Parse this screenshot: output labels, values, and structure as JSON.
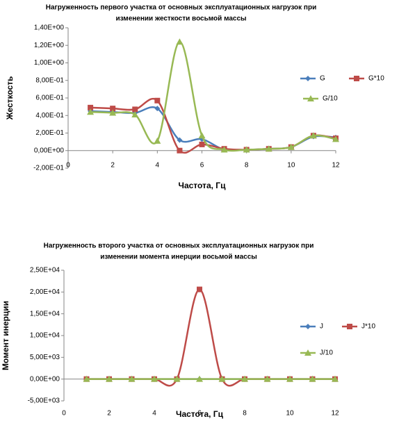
{
  "chart_data": [
    {
      "type": "line",
      "title": [
        "Нагруженность первого участка  от основных  эксплуатационных  нагрузок при",
        "изменении жесткости  восьмой  массы"
      ],
      "xlabel": "Частота, Гц",
      "ylabel": "Жесткость",
      "xlim": [
        0,
        12
      ],
      "xticks": [
        0,
        2,
        4,
        6,
        8,
        10,
        12
      ],
      "ylim": [
        -0.2,
        1.4
      ],
      "yticks": [
        {
          "value": -0.2,
          "label": "-2,00E-01"
        },
        {
          "value": 0,
          "label": "0,00E+00"
        },
        {
          "value": 0.2,
          "label": "2,00E-01"
        },
        {
          "value": 0.4,
          "label": "4,00E-01"
        },
        {
          "value": 0.6,
          "label": "6,00E-01"
        },
        {
          "value": 0.8,
          "label": "8,00E-01"
        },
        {
          "value": 1.0,
          "label": "1,00E+00"
        },
        {
          "value": 1.2,
          "label": "1,20E+00"
        },
        {
          "value": 1.4,
          "label": "1,40E+00"
        }
      ],
      "smooth": true,
      "x": [
        1,
        2,
        3,
        4,
        5,
        6,
        7,
        8,
        9,
        10,
        11,
        12
      ],
      "series": [
        {
          "name": "G",
          "color": "#4a7ebb",
          "marker": "diamond",
          "values": [
            0.45,
            0.44,
            0.43,
            0.48,
            0.12,
            0.13,
            0.01,
            0.01,
            0.02,
            0.04,
            0.16,
            0.15
          ]
        },
        {
          "name": "G*10",
          "color": "#be4b48",
          "marker": "square",
          "values": [
            0.49,
            0.48,
            0.47,
            0.57,
            0.0,
            0.07,
            0.02,
            0.01,
            0.02,
            0.04,
            0.17,
            0.14
          ]
        },
        {
          "name": "G/10",
          "color": "#98b954",
          "marker": "triangle",
          "values": [
            0.44,
            0.43,
            0.41,
            0.11,
            1.24,
            0.17,
            0.01,
            0.01,
            0.02,
            0.04,
            0.17,
            0.13
          ]
        }
      ]
    },
    {
      "type": "line",
      "title": [
        "Нагруженность  второго участка  от основных  эксплуатационных  нагрузок при",
        "изменении момента инерции восьмой массы"
      ],
      "xlabel": "Частота, Гц",
      "ylabel": "Момент инерции",
      "xlim": [
        0,
        12
      ],
      "xticks": [
        0,
        2,
        4,
        6,
        8,
        10,
        12
      ],
      "ylim": [
        -5000,
        25000
      ],
      "yticks": [
        {
          "value": -5000,
          "label": "-5,00E+03"
        },
        {
          "value": 0,
          "label": "0,00E+00"
        },
        {
          "value": 5000,
          "label": "5,00E+03"
        },
        {
          "value": 10000,
          "label": "1,00E+04"
        },
        {
          "value": 15000,
          "label": "1,50E+04"
        },
        {
          "value": 20000,
          "label": "2,00E+04"
        },
        {
          "value": 25000,
          "label": "2,50E+04"
        }
      ],
      "smooth": true,
      "x": [
        1,
        2,
        3,
        4,
        5,
        6,
        7,
        8,
        9,
        10,
        11,
        12
      ],
      "series": [
        {
          "name": "J",
          "color": "#4a7ebb",
          "marker": "diamond",
          "values": [
            0,
            0,
            0,
            0,
            0,
            0,
            0,
            0,
            0,
            0,
            0,
            0
          ]
        },
        {
          "name": "J*10",
          "color": "#be4b48",
          "marker": "square",
          "values": [
            0,
            0,
            0,
            0,
            0,
            20600,
            0,
            0,
            0,
            0,
            0,
            0
          ]
        },
        {
          "name": "J/10",
          "color": "#98b954",
          "marker": "triangle",
          "values": [
            0,
            0,
            0,
            0,
            0,
            0,
            0,
            0,
            0,
            0,
            0,
            0
          ]
        }
      ]
    }
  ]
}
